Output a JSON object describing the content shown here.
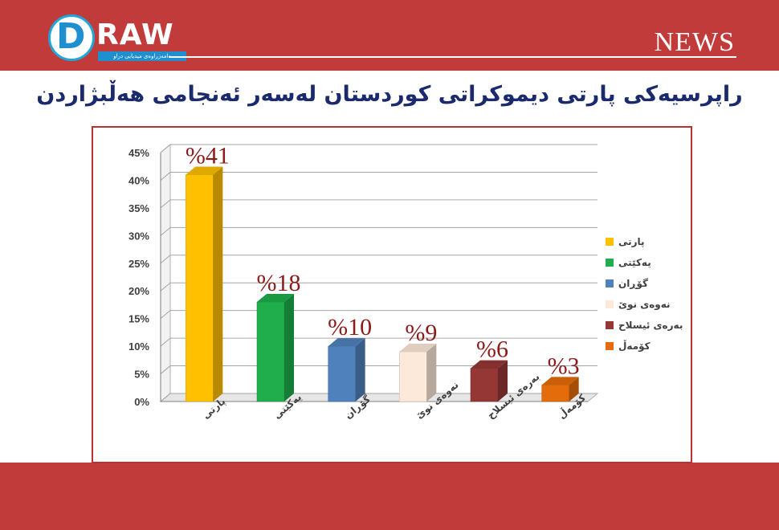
{
  "header": {
    "logo_text": "RAW",
    "logo_letter": "D",
    "logo_tagline": "دامەزراوەی میدیایی دراو",
    "news_label": "NEWS"
  },
  "title": "راپرسیەکی پارتی دیموکراتی کوردستان لەسەر ئەنجامی هەڵبژاردن",
  "colors": {
    "band": "#c23b3b",
    "title": "#1a2a6c",
    "value_labels": "#8b1a1a"
  },
  "chart_data": {
    "type": "bar",
    "title": "",
    "xlabel": "",
    "ylabel": "",
    "ylim": [
      0,
      45
    ],
    "yticks": [
      "0%",
      "5%",
      "10%",
      "15%",
      "20%",
      "25%",
      "30%",
      "35%",
      "40%",
      "45%"
    ],
    "grid": true,
    "legend_position": "right",
    "categories": [
      "پارتی",
      "یەکێتی",
      "گۆڕان",
      "نەوەی نوێ",
      "بەرەی ئیسلاح",
      "کۆمەڵ"
    ],
    "values": [
      41,
      18,
      10,
      9,
      6,
      3
    ],
    "value_labels": [
      "%41",
      "%18",
      "%10",
      "%9",
      "%6",
      "%3"
    ],
    "bar_colors": [
      "#ffc000",
      "#1fae4b",
      "#4f81bd",
      "#fde9d9",
      "#953735",
      "#e46c0a"
    ],
    "legend": [
      "پارتی",
      "یەکێتی",
      "گۆڕان",
      "نەوەی نوێ",
      "بەرەی ئیسلاح",
      "کۆمەڵ"
    ]
  }
}
